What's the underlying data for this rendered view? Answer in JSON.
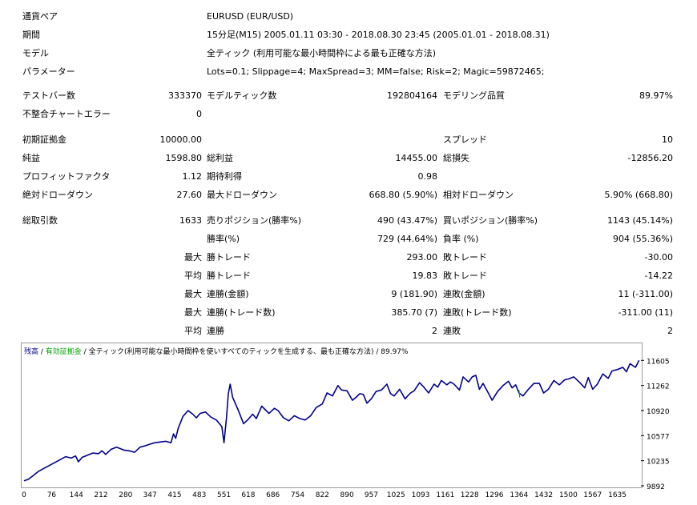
{
  "info": [
    {
      "label": "通貨ペア",
      "value": "EURUSD (EUR/USD)"
    },
    {
      "label": "期間",
      "value": "15分足(M15) 2005.01.11 03:30 - 2018.08.30 23:45 (2005.01.01 - 2018.08.31)"
    },
    {
      "label": "モデル",
      "value": "全ティック (利用可能な最小時間枠による最も正確な方法)"
    },
    {
      "label": "パラメーター",
      "value": "Lots=0.1; Slippage=4; MaxSpread=3; MM=false; Risk=2; Magic=59872465;"
    }
  ],
  "quality": {
    "bars_label": "テストバー数",
    "bars_value": "333370",
    "ticks_label": "モデルティック数",
    "ticks_value": "192804164",
    "quality_label": "モデリング品質",
    "quality_value": "89.97%",
    "errors_label": "不整合チャートエラー",
    "errors_value": "0"
  },
  "money": {
    "deposit_label": "初期証拠金",
    "deposit_value": "10000.00",
    "spread_label": "スプレッド",
    "spread_value": "10",
    "net_label": "純益",
    "net_value": "1598.80",
    "gross_profit_label": "総利益",
    "gross_profit_value": "14455.00",
    "gross_loss_label": "総損失",
    "gross_loss_value": "-12856.20",
    "pf_label": "プロフィットファクタ",
    "pf_value": "1.12",
    "expected_label": "期待利得",
    "expected_value": "0.98",
    "abs_dd_label": "絶対ドローダウン",
    "abs_dd_value": "27.60",
    "max_dd_label": "最大ドローダウン",
    "max_dd_value": "668.80 (5.90%)",
    "rel_dd_label": "相対ドローダウン",
    "rel_dd_value": "5.90% (668.80)"
  },
  "trades": {
    "total_label": "総取引数",
    "total_value": "1633",
    "short_label": "売りポジション(勝率%)",
    "short_value": "490 (43.47%)",
    "long_label": "買いポジション(勝率%)",
    "long_value": "1143 (45.14%)",
    "win_label": "勝率(%)",
    "win_value": "729 (44.64%)",
    "loss_label": "負率 (%)",
    "loss_value": "904 (55.36%)",
    "rows": [
      {
        "prefix": "最大",
        "l_label": "勝トレード",
        "l_value": "293.00",
        "r_label": "敗トレード",
        "r_value": "-30.00"
      },
      {
        "prefix": "平均",
        "l_label": "勝トレード",
        "l_value": "19.83",
        "r_label": "敗トレード",
        "r_value": "-14.22"
      },
      {
        "prefix": "最大",
        "l_label": "連勝(金額)",
        "l_value": "9 (181.90)",
        "r_label": "連敗(金額)",
        "r_value": "11 (-311.00)"
      },
      {
        "prefix": "最大",
        "l_label": "連勝(トレード数)",
        "l_value": "385.70 (7)",
        "r_label": "連敗(トレード数)",
        "r_value": "-311.00 (11)"
      },
      {
        "prefix": "平均",
        "l_label": "連勝",
        "l_value": "2",
        "r_label": "連敗",
        "r_value": "2"
      }
    ]
  },
  "chart_legend": {
    "balance": "残高",
    "sep1": " / ",
    "margin": "有効証拠金",
    "sep2": " / ",
    "desc": "全ティック(利用可能な最小時間枠を使いすべてのティックを生成する、最も正確な方法) / 89.97%",
    "balance_color": "#00008b",
    "margin_color": "#00a000"
  },
  "chart_data": {
    "type": "line",
    "title": "",
    "xlabel": "",
    "ylabel": "",
    "x_ticks": [
      "0",
      "76",
      "144",
      "212",
      "280",
      "347",
      "415",
      "483",
      "551",
      "618",
      "686",
      "754",
      "822",
      "890",
      "957",
      "1025",
      "1093",
      "1161",
      "1228",
      "1296",
      "1364",
      "1432",
      "1500",
      "1567",
      "1635"
    ],
    "y_ticks": [
      "11605",
      "11262",
      "10920",
      "10577",
      "10235",
      "9892"
    ],
    "ylim": [
      9892,
      11630
    ],
    "xlim": [
      0,
      1700
    ],
    "series": [
      {
        "color": "#00008b",
        "x": [
          0,
          12,
          25,
          40,
          55,
          70,
          85,
          100,
          115,
          130,
          142,
          150,
          160,
          175,
          190,
          205,
          215,
          225,
          240,
          255,
          265,
          275,
          290,
          305,
          320,
          335,
          347,
          360,
          375,
          390,
          405,
          412,
          418,
          425,
          438,
          452,
          465,
          475,
          485,
          500,
          515,
          530,
          545,
          551,
          558,
          563,
          568,
          575,
          590,
          605,
          618,
          630,
          640,
          655,
          665,
          675,
          690,
          700,
          715,
          730,
          745,
          760,
          775,
          790,
          805,
          822,
          835,
          850,
          865,
          875,
          890,
          905,
          915,
          925,
          935,
          945,
          957,
          970,
          985,
          1000,
          1010,
          1020,
          1035,
          1050,
          1065,
          1075,
          1090,
          1100,
          1115,
          1130,
          1140,
          1150,
          1165,
          1175,
          1185,
          1200,
          1210,
          1225,
          1235,
          1245,
          1255,
          1265,
          1275,
          1290,
          1305,
          1320,
          1335,
          1345,
          1355,
          1364,
          1375,
          1390,
          1405,
          1420,
          1432,
          1445,
          1460,
          1475,
          1490,
          1500,
          1515,
          1530,
          1545,
          1555,
          1567,
          1580,
          1595,
          1610,
          1620,
          1635,
          1650,
          1660,
          1670,
          1685,
          1695
        ],
        "y": [
          9960,
          9980,
          10030,
          10090,
          10130,
          10170,
          10210,
          10250,
          10290,
          10270,
          10300,
          10220,
          10280,
          10310,
          10340,
          10330,
          10370,
          10320,
          10390,
          10420,
          10400,
          10380,
          10370,
          10350,
          10420,
          10440,
          10460,
          10480,
          10490,
          10500,
          10480,
          10600,
          10540,
          10680,
          10840,
          10920,
          10870,
          10820,
          10880,
          10900,
          10830,
          10790,
          10700,
          10480,
          10820,
          11150,
          11280,
          11100,
          10930,
          10740,
          10800,
          10870,
          10810,
          10980,
          10930,
          10880,
          10950,
          10920,
          10820,
          10780,
          10850,
          10810,
          10790,
          10850,
          10960,
          11010,
          11160,
          11120,
          11260,
          11200,
          11190,
          11060,
          11100,
          11150,
          11140,
          11020,
          11080,
          11180,
          11200,
          11280,
          11150,
          11120,
          11210,
          11080,
          11160,
          11190,
          11300,
          11250,
          11160,
          11280,
          11240,
          11330,
          11270,
          11310,
          11280,
          11200,
          11380,
          11310,
          11380,
          11400,
          11210,
          11290,
          11200,
          11060,
          11180,
          11260,
          11320,
          11230,
          11270,
          11160,
          11120,
          11210,
          11290,
          11290,
          11160,
          11210,
          11330,
          11270,
          11340,
          11350,
          11380,
          11310,
          11230,
          11370,
          11210,
          11280,
          11420,
          11360,
          11460,
          11480,
          11510,
          11450,
          11560,
          11510,
          11605
        ]
      },
      {
        "color": "#00a000",
        "x": [
          1364,
          1366
        ],
        "y": [
          11200,
          11100
        ]
      }
    ]
  }
}
